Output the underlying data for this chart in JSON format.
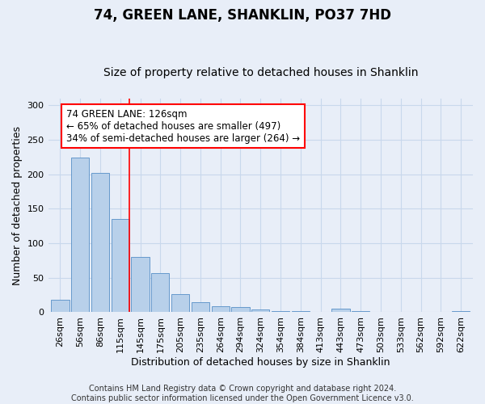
{
  "title": "74, GREEN LANE, SHANKLIN, PO37 7HD",
  "subtitle": "Size of property relative to detached houses in Shanklin",
  "xlabel": "Distribution of detached houses by size in Shanklin",
  "ylabel": "Number of detached properties",
  "bar_labels": [
    "26sqm",
    "56sqm",
    "86sqm",
    "115sqm",
    "145sqm",
    "175sqm",
    "205sqm",
    "235sqm",
    "264sqm",
    "294sqm",
    "324sqm",
    "354sqm",
    "384sqm",
    "413sqm",
    "443sqm",
    "473sqm",
    "503sqm",
    "533sqm",
    "562sqm",
    "592sqm",
    "622sqm"
  ],
  "bar_values": [
    18,
    224,
    202,
    135,
    80,
    57,
    26,
    15,
    9,
    7,
    4,
    2,
    2,
    1,
    5,
    2,
    0,
    0,
    0,
    0,
    2
  ],
  "bar_color": "#b8d0ea",
  "bar_edge_color": "#6699cc",
  "grid_color": "#c8d8ec",
  "background_color": "#e8eef8",
  "property_line_color": "red",
  "annotation_text": "74 GREEN LANE: 126sqm\n← 65% of detached houses are smaller (497)\n34% of semi-detached houses are larger (264) →",
  "annotation_box_color": "white",
  "annotation_box_edge_color": "red",
  "ylim": [
    0,
    310
  ],
  "yticks": [
    0,
    50,
    100,
    150,
    200,
    250,
    300
  ],
  "footer_text": "Contains HM Land Registry data © Crown copyright and database right 2024.\nContains public sector information licensed under the Open Government Licence v3.0.",
  "title_fontsize": 12,
  "subtitle_fontsize": 10,
  "xlabel_fontsize": 9,
  "ylabel_fontsize": 9,
  "tick_fontsize": 8,
  "annotation_fontsize": 8.5,
  "footer_fontsize": 7
}
